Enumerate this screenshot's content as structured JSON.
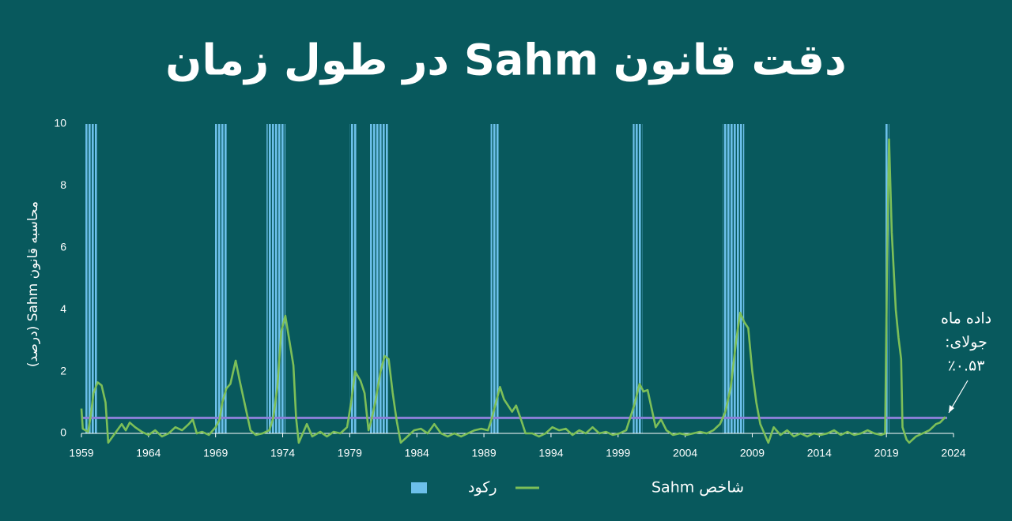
{
  "chart_data": {
    "type": "line",
    "title": "دقت قانون Sahm در طول زمان",
    "y_label": "محاسبه قانون Sahm (درصد)",
    "xlim": [
      1959,
      2024
    ],
    "xticks": [
      1959,
      1964,
      1969,
      1974,
      1979,
      1984,
      1989,
      1994,
      1999,
      2004,
      2009,
      2014,
      2019,
      2024
    ],
    "ylim": [
      0,
      10
    ],
    "yticks": [
      0,
      2,
      4,
      6,
      8,
      10
    ],
    "recessions": {
      "name": "رکود",
      "color": "#6cc0ea",
      "start": [
        1959.3,
        1968.9,
        1972.8,
        1979.0,
        1980.5,
        1989.5,
        2000.1,
        2006.8,
        2018.9
      ],
      "end": [
        1960.2,
        1969.9,
        1974.2,
        1979.5,
        1981.9,
        1990.1,
        2000.8,
        2008.4,
        2019.2
      ]
    },
    "threshold": {
      "value": 0.5,
      "color": "#8b80d8"
    },
    "x": [
      1959.0,
      1959.1,
      1959.3,
      1959.5,
      1959.7,
      1959.9,
      1960.2,
      1960.5,
      1960.8,
      1961.0,
      1961.5,
      1962.0,
      1962.3,
      1962.6,
      1963.0,
      1963.5,
      1964.0,
      1964.5,
      1965.0,
      1965.5,
      1966.0,
      1966.5,
      1967.0,
      1967.3,
      1967.6,
      1968.0,
      1968.5,
      1969.0,
      1969.3,
      1969.5,
      1969.8,
      1970.1,
      1970.5,
      1970.8,
      1971.2,
      1971.6,
      1972.0,
      1972.5,
      1973.0,
      1973.3,
      1973.6,
      1973.9,
      1974.2,
      1974.5,
      1974.8,
      1975.0,
      1975.2,
      1975.8,
      1976.2,
      1976.8,
      1977.3,
      1977.8,
      1978.3,
      1978.8,
      1979.1,
      1979.4,
      1979.8,
      1980.1,
      1980.4,
      1980.6,
      1980.9,
      1981.3,
      1981.6,
      1981.9,
      1982.2,
      1982.5,
      1982.8,
      1983.3,
      1983.8,
      1984.3,
      1984.8,
      1985.3,
      1985.8,
      1986.3,
      1986.8,
      1987.3,
      1987.8,
      1988.3,
      1988.8,
      1989.3,
      1989.6,
      1989.9,
      1990.2,
      1990.5,
      1990.8,
      1991.1,
      1991.4,
      1991.8,
      1992.1,
      1992.6,
      1993.1,
      1993.6,
      1994.1,
      1994.6,
      1995.1,
      1995.6,
      1996.1,
      1996.6,
      1997.1,
      1997.6,
      1998.1,
      1998.6,
      1999.1,
      1999.6,
      1999.9,
      2000.2,
      2000.6,
      2000.9,
      2001.2,
      2001.5,
      2001.8,
      2002.2,
      2002.6,
      2003.1,
      2003.6,
      2004.1,
      2004.6,
      2005.1,
      2005.6,
      2006.1,
      2006.6,
      2007.0,
      2007.4,
      2007.8,
      2008.1,
      2008.4,
      2008.7,
      2009.0,
      2009.3,
      2009.6,
      2009.9,
      2010.2,
      2010.6,
      2011.1,
      2011.6,
      2012.1,
      2012.6,
      2013.1,
      2013.6,
      2014.1,
      2014.6,
      2015.1,
      2015.6,
      2016.1,
      2016.6,
      2017.1,
      2017.6,
      2018.1,
      2018.6,
      2018.9,
      2019.05,
      2019.2,
      2019.4,
      2019.7,
      2019.9,
      2020.1,
      2020.2,
      2020.5,
      2020.7,
      2021.2,
      2021.7,
      2022.2,
      2022.7,
      2023.0,
      2023.4
    ],
    "series": [
      {
        "name": "شاخص Sahm",
        "color": "#7dbf58",
        "values": [
          0.8,
          0.15,
          0.1,
          0.05,
          0.6,
          1.3,
          1.65,
          1.55,
          1.0,
          -0.3,
          0.0,
          0.3,
          0.1,
          0.35,
          0.2,
          0.05,
          -0.05,
          0.1,
          -0.1,
          0.0,
          0.2,
          0.1,
          0.3,
          0.45,
          0.0,
          0.05,
          -0.05,
          0.2,
          0.45,
          1.0,
          1.45,
          1.6,
          2.35,
          1.7,
          0.9,
          0.1,
          -0.05,
          0.0,
          0.1,
          0.5,
          1.5,
          3.3,
          3.8,
          3.0,
          2.2,
          0.5,
          -0.3,
          0.3,
          -0.1,
          0.05,
          -0.1,
          0.05,
          0.0,
          0.2,
          1.0,
          2.0,
          1.7,
          1.3,
          0.1,
          0.4,
          1.0,
          2.0,
          2.5,
          2.4,
          1.3,
          0.4,
          -0.3,
          -0.1,
          0.1,
          0.15,
          0.0,
          0.3,
          0.0,
          -0.1,
          0.0,
          -0.1,
          0.0,
          0.1,
          0.15,
          0.1,
          0.5,
          1.0,
          1.5,
          1.1,
          0.9,
          0.7,
          0.9,
          0.4,
          0.0,
          0.0,
          -0.1,
          0.0,
          0.2,
          0.1,
          0.15,
          -0.05,
          0.1,
          0.0,
          0.2,
          0.0,
          0.05,
          -0.05,
          0.0,
          0.1,
          0.5,
          0.9,
          1.6,
          1.35,
          1.4,
          0.8,
          0.2,
          0.45,
          0.1,
          -0.05,
          0.0,
          -0.05,
          0.0,
          0.05,
          0.0,
          0.1,
          0.3,
          0.7,
          1.5,
          3.0,
          3.9,
          3.6,
          3.4,
          2.0,
          1.0,
          0.3,
          0.0,
          -0.3,
          0.2,
          -0.05,
          0.1,
          -0.1,
          0.0,
          -0.1,
          0.0,
          -0.05,
          0.0,
          0.1,
          -0.05,
          0.05,
          -0.05,
          0.0,
          0.1,
          0.0,
          -0.05,
          0.0,
          5.5,
          9.5,
          6.5,
          4.0,
          3.1,
          2.4,
          0.2,
          -0.2,
          -0.3,
          -0.1,
          0.0,
          0.1,
          0.3,
          0.35,
          0.53
        ]
      }
    ],
    "annotation": [
      "داده ماه",
      "جولای:",
      "٪۰.۵۳"
    ]
  }
}
